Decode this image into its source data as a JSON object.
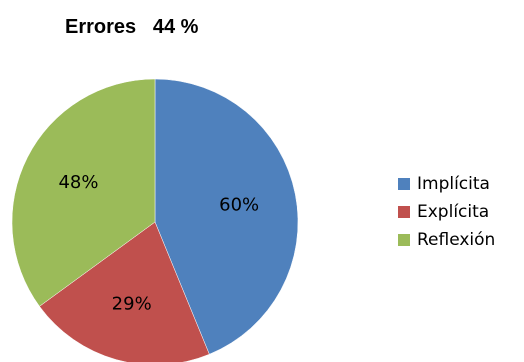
{
  "chart_data": {
    "type": "pie",
    "title": "Errores   44 %",
    "categories": [
      "Implícita",
      "Explícita",
      "Reflexión"
    ],
    "values": [
      60,
      29,
      48
    ],
    "labels": [
      "60%",
      "29%",
      "48%"
    ],
    "colors": [
      "#4F81BD",
      "#C0504D",
      "#9BBB59"
    ],
    "legend_position": "right"
  }
}
